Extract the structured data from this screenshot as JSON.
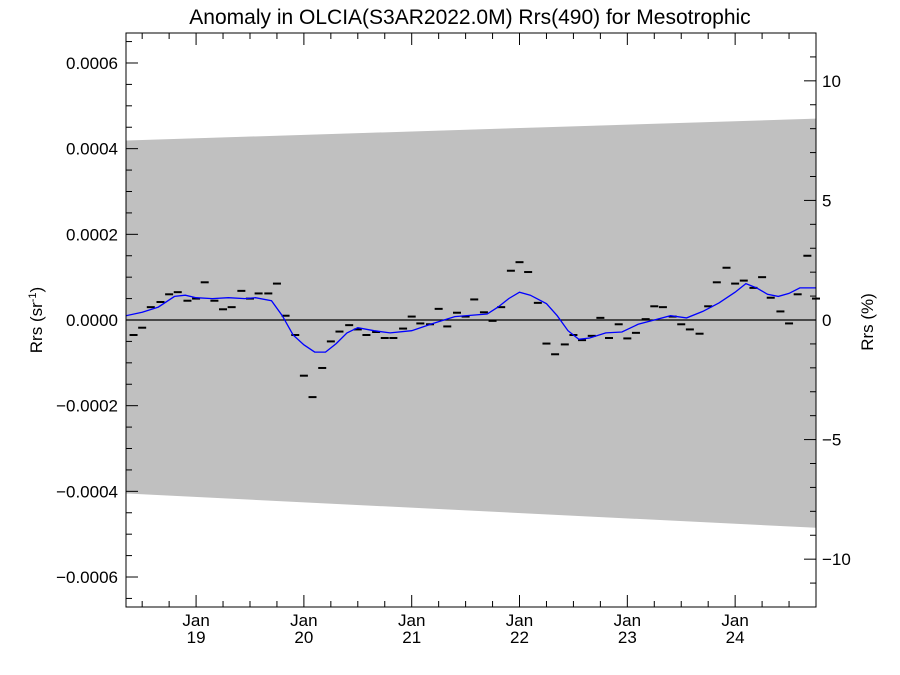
{
  "chart_data": {
    "type": "line",
    "title": "Anomaly in OLCIA(S3AR2022.0M) Rrs(490) for Mesotrophic",
    "ylabel_left": "Rrs (sr",
    "ylabel_left_sup": "-1",
    "ylabel_left_end": ")",
    "ylabel_right": "Rrs (%)",
    "xlim": [
      2018.35,
      2024.75
    ],
    "ylim": [
      -0.00067,
      0.00067
    ],
    "ylim_right": [
      -12.0,
      12.0
    ],
    "x_ticks": [
      {
        "x": 2019.0,
        "month": "Jan",
        "year": "19"
      },
      {
        "x": 2020.0,
        "month": "Jan",
        "year": "20"
      },
      {
        "x": 2021.0,
        "month": "Jan",
        "year": "21"
      },
      {
        "x": 2022.0,
        "month": "Jan",
        "year": "22"
      },
      {
        "x": 2023.0,
        "month": "Jan",
        "year": "23"
      },
      {
        "x": 2024.0,
        "month": "Jan",
        "year": "24"
      }
    ],
    "y_ticks_left": [
      {
        "value": 0.0006,
        "label": "0.0006"
      },
      {
        "value": 0.0004,
        "label": "0.0004"
      },
      {
        "value": 0.0002,
        "label": "0.0002"
      },
      {
        "value": 0.0,
        "label": "0.0000"
      },
      {
        "value": -0.0002,
        "label": "−0.0002"
      },
      {
        "value": -0.0004,
        "label": "−0.0004"
      },
      {
        "value": -0.0006,
        "label": "−0.0006"
      }
    ],
    "y_ticks_right": [
      {
        "value": 10,
        "label": "10"
      },
      {
        "value": 5,
        "label": "5"
      },
      {
        "value": 0,
        "label": "0"
      },
      {
        "value": -5,
        "label": "−5"
      },
      {
        "value": -10,
        "label": "−10"
      }
    ],
    "band": {
      "x": [
        2018.35,
        2024.75
      ],
      "upper": [
        0.000419,
        0.00047
      ],
      "lower": [
        -0.000405,
        -0.000485
      ],
      "color": "#c0c0c0"
    },
    "zero_line": 0.0,
    "series": [
      {
        "kind": "monthly_markers",
        "color": "#000000",
        "x": [
          2018.42,
          2018.5,
          2018.58,
          2018.67,
          2018.75,
          2018.83,
          2018.92,
          2019.0,
          2019.08,
          2019.17,
          2019.25,
          2019.33,
          2019.42,
          2019.5,
          2019.58,
          2019.67,
          2019.75,
          2019.83,
          2019.92,
          2020.0,
          2020.08,
          2020.17,
          2020.25,
          2020.33,
          2020.42,
          2020.5,
          2020.58,
          2020.67,
          2020.75,
          2020.83,
          2020.92,
          2021.0,
          2021.08,
          2021.17,
          2021.25,
          2021.33,
          2021.42,
          2021.5,
          2021.58,
          2021.67,
          2021.75,
          2021.83,
          2021.92,
          2022.0,
          2022.08,
          2022.17,
          2022.25,
          2022.33,
          2022.42,
          2022.5,
          2022.58,
          2022.67,
          2022.75,
          2022.83,
          2022.92,
          2023.0,
          2023.08,
          2023.17,
          2023.25,
          2023.33,
          2023.42,
          2023.5,
          2023.58,
          2023.67,
          2023.75,
          2023.83,
          2023.92,
          2024.0,
          2024.08,
          2024.17,
          2024.25,
          2024.33,
          2024.42,
          2024.5,
          2024.58,
          2024.67,
          2024.75
        ],
        "values": [
          -3.5e-05,
          -1.8e-05,
          3e-05,
          4.2e-05,
          6e-05,
          6.5e-05,
          4.5e-05,
          5e-05,
          8.8e-05,
          4.5e-05,
          2.5e-05,
          3e-05,
          6.8e-05,
          5e-05,
          6.2e-05,
          6.2e-05,
          8.5e-05,
          1e-05,
          -3.5e-05,
          -0.00013,
          -0.00018,
          -0.000112,
          -5e-05,
          -2.7e-05,
          -1.2e-05,
          -2.2e-05,
          -3.5e-05,
          -2.8e-05,
          -4.2e-05,
          -4.2e-05,
          -2e-05,
          8e-06,
          -8e-06,
          -1e-05,
          2.6e-05,
          -1.5e-05,
          1.7e-05,
          8e-06,
          4.8e-05,
          1.8e-05,
          -2e-06,
          3e-05,
          0.000115,
          0.000135,
          0.000112,
          4e-05,
          -5.5e-05,
          -8e-05,
          -5.7e-05,
          -3.5e-05,
          -4.7e-05,
          -3.7e-05,
          5e-06,
          -4.2e-05,
          -1e-05,
          -4.3e-05,
          -3e-05,
          2e-06,
          3.2e-05,
          3e-05,
          8e-06,
          -1e-05,
          -2.2e-05,
          -3.2e-05,
          3.2e-05,
          8.8e-05,
          0.000122,
          8.5e-05,
          9.2e-05,
          7.5e-05,
          0.0001,
          5.2e-05,
          2e-05,
          -8e-06,
          6e-05,
          0.00015,
          5e-05
        ]
      },
      {
        "kind": "smoothed_line",
        "color": "#0000ff",
        "x": [
          2018.35,
          2018.5,
          2018.65,
          2018.8,
          2018.9,
          2019.0,
          2019.15,
          2019.3,
          2019.45,
          2019.55,
          2019.7,
          2019.8,
          2019.9,
          2020.0,
          2020.1,
          2020.2,
          2020.3,
          2020.4,
          2020.5,
          2020.65,
          2020.8,
          2021.0,
          2021.2,
          2021.4,
          2021.6,
          2021.7,
          2021.8,
          2021.9,
          2022.0,
          2022.1,
          2022.25,
          2022.35,
          2022.45,
          2022.55,
          2022.65,
          2022.8,
          2022.95,
          2023.1,
          2023.25,
          2023.4,
          2023.55,
          2023.7,
          2023.85,
          2024.0,
          2024.1,
          2024.2,
          2024.3,
          2024.4,
          2024.5,
          2024.6,
          2024.75
        ],
        "values": [
          1e-05,
          1.8e-05,
          3e-05,
          5.5e-05,
          5.8e-05,
          5.2e-05,
          5e-05,
          5.2e-05,
          5e-05,
          5.2e-05,
          4.5e-05,
          1e-05,
          -3.5e-05,
          -5.8e-05,
          -7.5e-05,
          -7.5e-05,
          -5.5e-05,
          -3e-05,
          -1.8e-05,
          -2.5e-05,
          -3e-05,
          -2.5e-05,
          -8e-06,
          8e-06,
          1.2e-05,
          1.4e-05,
          3e-05,
          5e-05,
          6.5e-05,
          5.8e-05,
          3.8e-05,
          1e-05,
          -2.5e-05,
          -4.5e-05,
          -4.2e-05,
          -3e-05,
          -2.8e-05,
          -1e-05,
          0.0,
          1e-05,
          5e-06,
          2e-05,
          4e-05,
          6.5e-05,
          8.5e-05,
          7.5e-05,
          6e-05,
          5.5e-05,
          6.2e-05,
          7.5e-05,
          7.5e-05
        ]
      }
    ],
    "legend": "none",
    "grid": false
  }
}
